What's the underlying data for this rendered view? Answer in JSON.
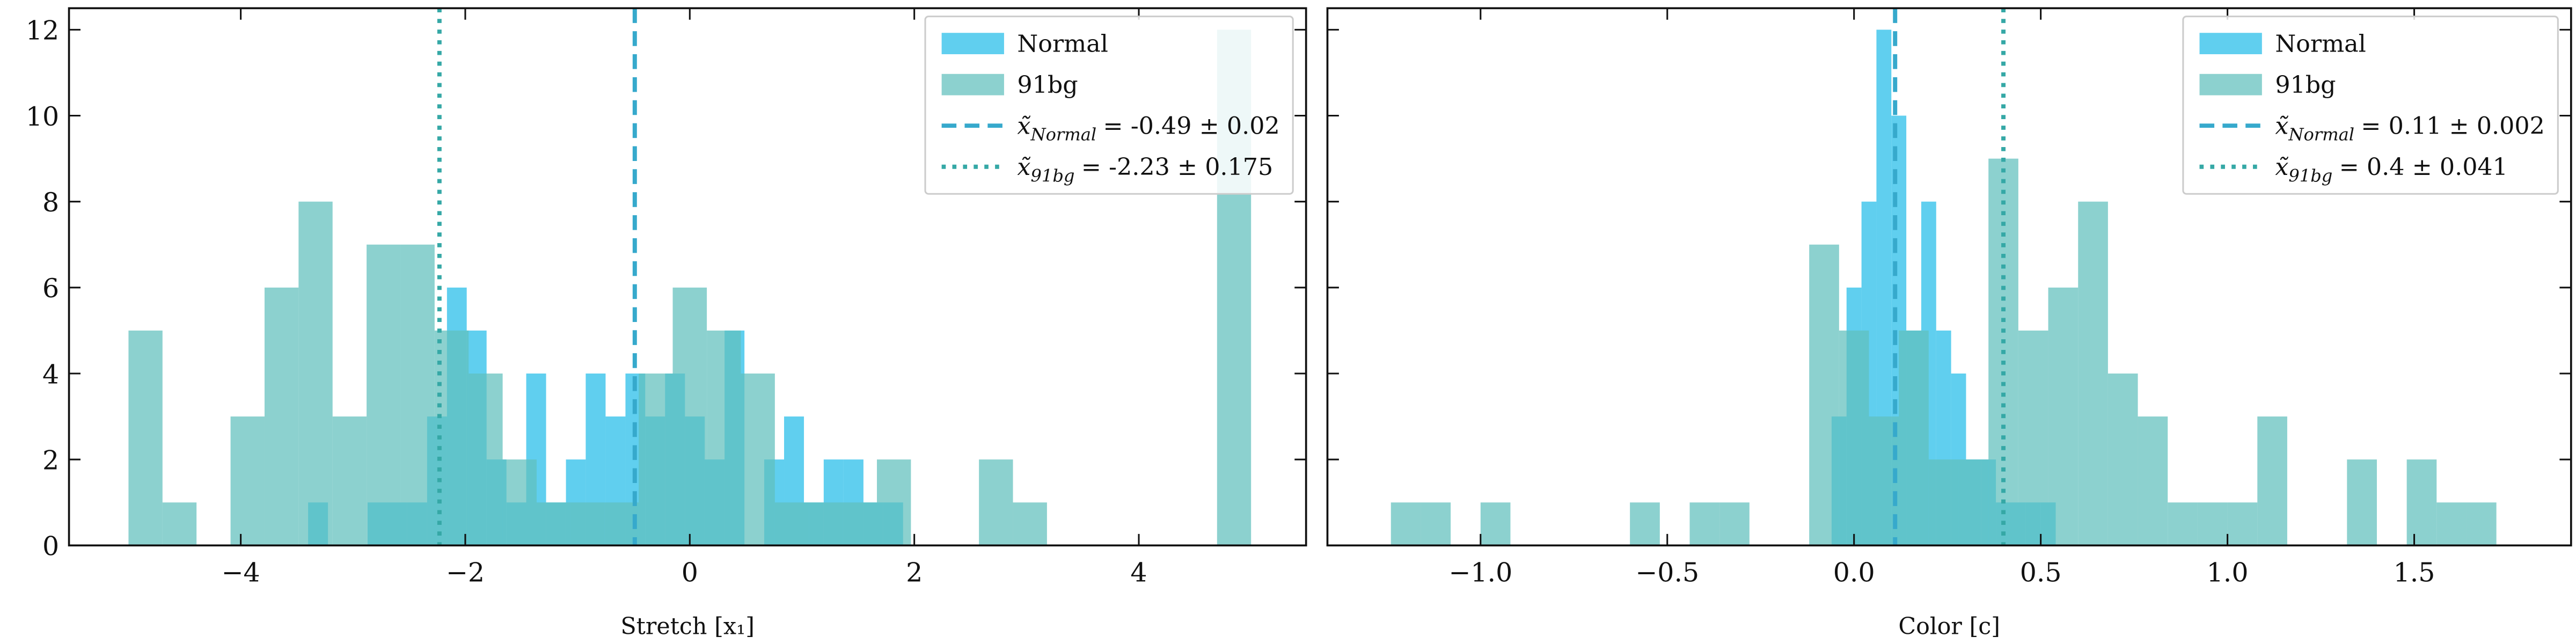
{
  "chart_data": [
    {
      "type": "histogram",
      "xlabel": "Stretch [x₁]",
      "xlim": [
        -5.53,
        5.49
      ],
      "ylim": [
        0,
        12.5
      ],
      "xticks": [
        {
          "value": -4,
          "label": "−4"
        },
        {
          "value": -2,
          "label": "−2"
        },
        0,
        2,
        4
      ],
      "yticks": [
        0,
        2,
        4,
        6,
        8,
        10,
        12
      ],
      "yticklabels": true,
      "legend": "upper right",
      "series": [
        {
          "name": "Normal",
          "color": "#22bde9",
          "bins": [
            -3.4,
            -3.223,
            -3.047,
            -2.87,
            -2.693,
            -2.517,
            -2.34,
            -2.163,
            -1.987,
            -1.81,
            -1.633,
            -1.457,
            -1.28,
            -1.103,
            -0.927,
            -0.75,
            -0.573,
            -0.397,
            -0.22,
            -0.043,
            0.133,
            0.31,
            0.487,
            0.663,
            0.84,
            1.017,
            1.193,
            1.37,
            1.547,
            1.723,
            1.9
          ],
          "values": [
            1,
            0,
            0,
            1,
            1,
            1,
            3,
            6,
            5,
            2,
            1,
            4,
            1,
            2,
            4,
            3,
            4,
            3,
            4,
            3,
            2,
            5,
            0,
            2,
            3,
            1,
            2,
            2,
            1,
            1
          ]
        },
        {
          "name": "91bg",
          "color": "#5fbfbd",
          "bins": [
            -5.0,
            -4.697,
            -4.394,
            -4.091,
            -3.788,
            -3.485,
            -3.182,
            -2.879,
            -2.576,
            -2.273,
            -1.97,
            -1.667,
            -1.364,
            -1.061,
            -0.758,
            -0.455,
            -0.152,
            0.152,
            0.455,
            0.758,
            1.061,
            1.364,
            1.667,
            1.97,
            2.273,
            2.576,
            2.879,
            3.182,
            3.485,
            3.788,
            4.091,
            4.394,
            4.697,
            5.0
          ],
          "values": [
            5,
            1,
            0,
            3,
            6,
            8,
            3,
            7,
            7,
            5,
            4,
            2,
            1,
            1,
            1,
            4,
            6,
            5,
            4,
            1,
            1,
            1,
            2,
            0,
            0,
            2,
            1,
            0,
            0,
            0,
            0,
            0,
            12
          ]
        }
      ],
      "lines": [
        {
          "symbol": "x̃",
          "subscript": "Normal",
          "text": "= -0.49 ± 0.02",
          "x": -0.49,
          "color": "#36a9cc",
          "style": "dashed"
        },
        {
          "symbol": "x̃",
          "subscript": "91bg",
          "text": "= -2.23 ± 0.175",
          "x": -2.23,
          "color": "#35a8a6",
          "style": "dotted"
        }
      ]
    },
    {
      "type": "histogram",
      "xlabel": "Color [c]",
      "xlim": [
        -1.41,
        1.92
      ],
      "ylim": [
        0,
        12.5
      ],
      "xticks": [
        {
          "value": -1,
          "label": "−1.0"
        },
        {
          "value": -0.5,
          "label": "−0.5"
        },
        {
          "value": 0,
          "label": "0.0"
        },
        0.5,
        {
          "value": 1,
          "label": "1.0"
        },
        1.5
      ],
      "yticks": [
        0,
        2,
        4,
        6,
        8,
        10,
        12
      ],
      "yticklabels": false,
      "legend": "upper right",
      "series": [
        {
          "name": "Normal",
          "color": "#22bde9",
          "bins": [
            -0.06,
            -0.02,
            0.02,
            0.06,
            0.1,
            0.14,
            0.18,
            0.22,
            0.26,
            0.3,
            0.34,
            0.38,
            0.42,
            0.46,
            0.5,
            0.54
          ],
          "values": [
            3,
            6,
            8,
            12,
            10,
            5,
            8,
            5,
            4,
            2,
            2,
            1,
            1,
            1,
            1
          ]
        },
        {
          "name": "91bg",
          "color": "#5fbfbd",
          "bins": [
            -1.24,
            -1.16,
            -1.08,
            -1.0,
            -0.92,
            -0.84,
            -0.76,
            -0.68,
            -0.6,
            -0.52,
            -0.44,
            -0.36,
            -0.28,
            -0.2,
            -0.12,
            -0.04,
            0.04,
            0.12,
            0.2,
            0.28,
            0.36,
            0.44,
            0.52,
            0.6,
            0.68,
            0.76,
            0.84,
            0.92,
            1.0,
            1.08,
            1.16,
            1.24,
            1.32,
            1.4,
            1.48,
            1.56,
            1.64,
            1.72
          ],
          "values": [
            1,
            1,
            0,
            1,
            0,
            0,
            0,
            0,
            1,
            0,
            1,
            1,
            0,
            0,
            7,
            5,
            3,
            5,
            2,
            2,
            9,
            5,
            6,
            8,
            4,
            3,
            1,
            1,
            1,
            3,
            0,
            0,
            2,
            0,
            2,
            1,
            1
          ]
        }
      ],
      "lines": [
        {
          "symbol": "x̃",
          "subscript": "Normal",
          "text": "= 0.11 ± 0.002",
          "x": 0.11,
          "color": "#36a9cc",
          "style": "dashed"
        },
        {
          "symbol": "x̃",
          "subscript": "91bg",
          "text": "= 0.4 ± 0.041",
          "x": 0.4,
          "color": "#35a8a6",
          "style": "dotted"
        }
      ]
    }
  ]
}
